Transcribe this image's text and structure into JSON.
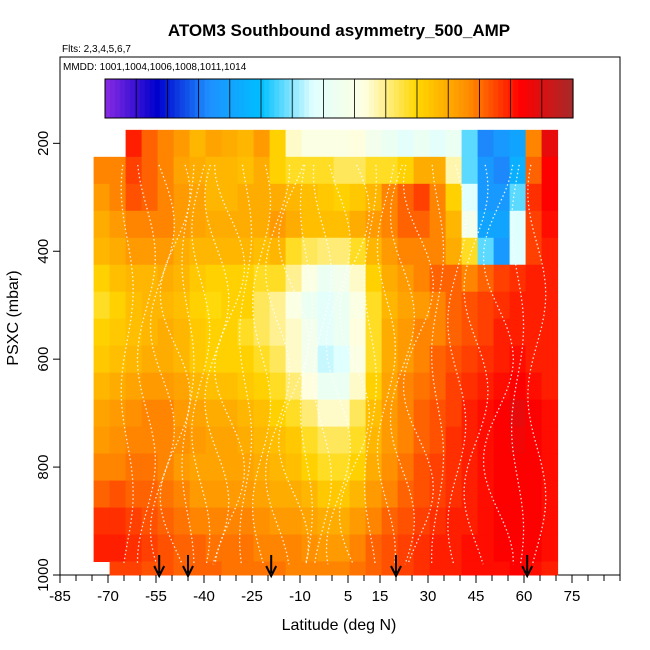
{
  "chart_data": {
    "type": "heatmap",
    "title": "ATOM3 Southbound asymmetry_500_AMP",
    "subtitle_flights": "Flts: 2,3,4,5,6,7",
    "subtitle_dates": "MMDD: 1001,1004,1006,1008,1011,1014",
    "xlabel": "Latitude (deg N)",
    "ylabel": "PSXC (mbar)",
    "xlim": [
      -85,
      90
    ],
    "ylim": [
      1000,
      40
    ],
    "y_reversed": true,
    "x_ticks": [
      "-85",
      "-70",
      "-55",
      "-40",
      "-25",
      "-10",
      "5",
      "15",
      "30",
      "45",
      "60",
      "75"
    ],
    "x_tick_values": [
      -85,
      -70,
      -55,
      -40,
      -25,
      -10,
      5,
      15,
      30,
      45,
      60,
      75
    ],
    "y_ticks": [
      "200",
      "400",
      "600",
      "800",
      "1000"
    ],
    "y_tick_values": [
      200,
      400,
      600,
      800,
      1000
    ],
    "colorbar": {
      "range": [
        0.02,
        0.76
      ],
      "ticks": [
        "0.1",
        "0.2",
        "0.3",
        "0.4",
        "0.5",
        "0.6",
        "0.7"
      ],
      "tick_values": [
        0.1,
        0.2,
        0.3,
        0.4,
        0.5,
        0.6,
        0.7
      ],
      "colors": [
        "#8a2be2",
        "#0000cd",
        "#1e90ff",
        "#00bfff",
        "#e0ffff",
        "#ffffe0",
        "#ffd700",
        "#ff8c00",
        "#ff0000",
        "#a52a2a"
      ]
    },
    "grid": false,
    "profile_markers_lat": [
      -54,
      -45,
      -19,
      20,
      61
    ],
    "pressure_levels": [
      200,
      250,
      300,
      350,
      400,
      450,
      500,
      550,
      600,
      650,
      700,
      750,
      800,
      850,
      900,
      950,
      1000
    ],
    "lat_bins": [
      -72,
      -67,
      -62,
      -57,
      -52,
      -47,
      -42,
      -37,
      -32,
      -27,
      -22,
      -17,
      -12,
      -7,
      -2,
      3,
      8,
      13,
      18,
      23,
      28,
      33,
      38,
      43,
      48,
      53,
      58,
      63,
      68
    ],
    "values": [
      [
        null,
        null,
        0.66,
        0.62,
        0.6,
        0.58,
        0.55,
        0.57,
        0.56,
        0.55,
        0.58,
        0.52,
        0.44,
        0.42,
        0.42,
        0.42,
        0.43,
        0.4,
        0.38,
        0.36,
        0.38,
        0.36,
        0.38,
        0.3,
        0.18,
        0.2,
        0.22,
        0.6,
        0.7
      ],
      [
        0.6,
        0.6,
        0.64,
        0.62,
        0.6,
        0.57,
        0.56,
        0.55,
        0.55,
        0.54,
        0.56,
        0.52,
        0.5,
        0.5,
        0.5,
        0.48,
        0.48,
        0.5,
        0.5,
        0.52,
        0.56,
        0.56,
        0.45,
        0.3,
        0.2,
        0.18,
        0.24,
        0.62,
        0.68
      ],
      [
        0.58,
        0.6,
        0.63,
        0.62,
        0.6,
        0.58,
        0.57,
        0.55,
        0.55,
        0.56,
        0.56,
        0.56,
        0.55,
        0.54,
        0.53,
        0.52,
        0.53,
        0.55,
        0.6,
        0.62,
        0.64,
        0.6,
        0.52,
        0.35,
        0.2,
        0.2,
        0.3,
        0.65,
        0.68
      ],
      [
        0.56,
        0.58,
        0.6,
        0.6,
        0.6,
        0.58,
        0.57,
        0.56,
        0.56,
        0.56,
        0.56,
        0.58,
        0.56,
        0.54,
        0.54,
        0.54,
        0.56,
        0.58,
        0.6,
        0.62,
        0.62,
        0.6,
        0.55,
        0.4,
        0.22,
        0.22,
        0.35,
        0.64,
        0.67
      ],
      [
        0.55,
        0.56,
        0.58,
        0.58,
        0.58,
        0.56,
        0.55,
        0.55,
        0.55,
        0.55,
        0.54,
        0.55,
        0.5,
        0.48,
        0.47,
        0.47,
        0.5,
        0.55,
        0.58,
        0.6,
        0.6,
        0.6,
        0.56,
        0.5,
        0.3,
        0.2,
        0.35,
        0.64,
        0.66
      ],
      [
        0.52,
        0.54,
        0.55,
        0.55,
        0.56,
        0.55,
        0.53,
        0.52,
        0.52,
        0.52,
        0.5,
        0.5,
        0.46,
        0.42,
        0.38,
        0.4,
        0.44,
        0.52,
        0.56,
        0.58,
        0.6,
        0.62,
        0.62,
        0.6,
        0.62,
        0.64,
        0.65,
        0.66,
        0.66
      ],
      [
        0.5,
        0.52,
        0.54,
        0.55,
        0.55,
        0.54,
        0.52,
        0.51,
        0.52,
        0.52,
        0.48,
        0.46,
        0.42,
        0.38,
        0.36,
        0.38,
        0.42,
        0.5,
        0.55,
        0.57,
        0.58,
        0.6,
        0.62,
        0.63,
        0.64,
        0.65,
        0.66,
        0.66,
        0.66
      ],
      [
        0.52,
        0.53,
        0.54,
        0.55,
        0.56,
        0.55,
        0.53,
        0.52,
        0.52,
        0.5,
        0.48,
        0.46,
        0.44,
        0.4,
        0.36,
        0.38,
        0.43,
        0.5,
        0.56,
        0.58,
        0.6,
        0.6,
        0.62,
        0.63,
        0.64,
        0.66,
        0.66,
        0.66,
        0.66
      ],
      [
        0.53,
        0.54,
        0.55,
        0.56,
        0.56,
        0.55,
        0.53,
        0.52,
        0.52,
        0.52,
        0.5,
        0.48,
        0.44,
        0.4,
        0.34,
        0.35,
        0.42,
        0.5,
        0.56,
        0.58,
        0.6,
        0.62,
        0.63,
        0.64,
        0.65,
        0.66,
        0.67,
        0.66,
        0.66
      ],
      [
        0.55,
        0.56,
        0.57,
        0.58,
        0.58,
        0.57,
        0.55,
        0.54,
        0.54,
        0.53,
        0.52,
        0.5,
        0.47,
        0.43,
        0.38,
        0.38,
        0.44,
        0.52,
        0.57,
        0.6,
        0.61,
        0.62,
        0.64,
        0.65,
        0.66,
        0.67,
        0.68,
        0.67,
        0.66
      ],
      [
        0.57,
        0.58,
        0.59,
        0.6,
        0.6,
        0.58,
        0.57,
        0.56,
        0.56,
        0.55,
        0.54,
        0.52,
        0.5,
        0.47,
        0.44,
        0.44,
        0.48,
        0.54,
        0.58,
        0.6,
        0.62,
        0.63,
        0.64,
        0.66,
        0.67,
        0.68,
        0.7,
        0.68,
        0.67
      ],
      [
        0.58,
        0.59,
        0.6,
        0.6,
        0.6,
        0.59,
        0.58,
        0.57,
        0.57,
        0.56,
        0.55,
        0.54,
        0.53,
        0.5,
        0.48,
        0.48,
        0.5,
        0.55,
        0.58,
        0.6,
        0.62,
        0.63,
        0.65,
        0.66,
        0.67,
        0.68,
        0.69,
        0.68,
        0.67
      ],
      [
        0.6,
        0.6,
        0.61,
        0.61,
        0.6,
        0.58,
        0.57,
        0.57,
        0.57,
        0.57,
        0.56,
        0.55,
        0.54,
        0.52,
        0.5,
        0.5,
        0.52,
        0.56,
        0.59,
        0.61,
        0.63,
        0.64,
        0.65,
        0.66,
        0.67,
        0.68,
        0.68,
        0.68,
        0.67
      ],
      [
        0.62,
        0.63,
        0.62,
        0.62,
        0.61,
        0.6,
        0.58,
        0.58,
        0.58,
        0.58,
        0.57,
        0.56,
        0.56,
        0.55,
        0.53,
        0.53,
        0.55,
        0.58,
        0.6,
        0.62,
        0.63,
        0.64,
        0.65,
        0.66,
        0.67,
        0.68,
        0.68,
        0.68,
        0.67
      ],
      [
        0.65,
        0.65,
        0.64,
        0.63,
        0.62,
        0.61,
        0.6,
        0.6,
        0.6,
        0.6,
        0.59,
        0.58,
        0.58,
        0.57,
        0.56,
        0.56,
        0.58,
        0.6,
        0.62,
        0.63,
        0.64,
        0.65,
        0.66,
        0.66,
        0.67,
        0.68,
        0.68,
        0.68,
        0.67
      ],
      [
        0.66,
        0.66,
        0.65,
        0.64,
        0.63,
        0.62,
        0.62,
        0.61,
        0.61,
        0.61,
        0.6,
        0.6,
        0.6,
        0.59,
        0.58,
        0.58,
        0.6,
        0.62,
        0.63,
        0.64,
        0.65,
        0.66,
        0.66,
        0.67,
        0.67,
        0.68,
        0.68,
        0.68,
        0.67
      ],
      [
        null,
        0.64,
        0.64,
        0.63,
        0.63,
        0.62,
        0.62,
        0.62,
        0.61,
        0.61,
        0.61,
        0.61,
        0.6,
        0.6,
        0.6,
        0.6,
        0.61,
        0.62,
        0.63,
        0.64,
        0.65,
        0.66,
        0.66,
        0.67,
        0.67,
        0.67,
        0.68,
        0.67,
        0.66
      ]
    ]
  }
}
